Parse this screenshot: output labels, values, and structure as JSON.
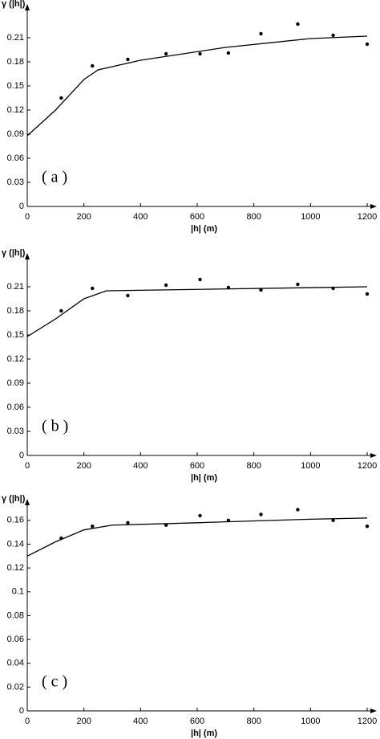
{
  "chart_data": [
    {
      "type": "scatter",
      "annotation": "( a )",
      "ylabel": "γ (|h|)",
      "xlabel": "|h| (m)",
      "xlim": [
        0,
        1200
      ],
      "xticks": [
        0,
        200,
        400,
        600,
        800,
        1000,
        1200
      ],
      "ylim": [
        0,
        0.24
      ],
      "yticks": [
        0,
        0.03,
        0.06,
        0.09,
        0.12,
        0.15,
        0.18,
        0.21
      ],
      "series": [
        {
          "type": "scatter",
          "color": "#000000",
          "x": [
            120,
            230,
            355,
            490,
            610,
            710,
            825,
            955,
            1080,
            1200
          ],
          "values": [
            0.135,
            0.175,
            0.183,
            0.19,
            0.19,
            0.191,
            0.215,
            0.227,
            0.213,
            0.202
          ]
        },
        {
          "type": "line",
          "color": "#000000",
          "x": [
            0,
            100,
            200,
            250,
            400,
            700,
            1000,
            1200
          ],
          "values": [
            0.088,
            0.12,
            0.158,
            0.17,
            0.182,
            0.198,
            0.209,
            0.212
          ]
        }
      ]
    },
    {
      "type": "scatter",
      "annotation": "( b )",
      "ylabel": "γ (|h|)",
      "xlabel": "|h| (m)",
      "xlim": [
        0,
        1200
      ],
      "xticks": [
        0,
        200,
        400,
        600,
        800,
        1000,
        1200
      ],
      "ylim": [
        0,
        0.24
      ],
      "yticks": [
        0,
        0.03,
        0.06,
        0.09,
        0.12,
        0.15,
        0.18,
        0.21
      ],
      "series": [
        {
          "type": "scatter",
          "color": "#000000",
          "x": [
            120,
            230,
            355,
            490,
            610,
            710,
            825,
            955,
            1080,
            1200
          ],
          "values": [
            0.18,
            0.208,
            0.199,
            0.212,
            0.219,
            0.209,
            0.206,
            0.213,
            0.208,
            0.201
          ]
        },
        {
          "type": "line",
          "color": "#000000",
          "x": [
            0,
            100,
            200,
            280,
            1200
          ],
          "values": [
            0.148,
            0.17,
            0.195,
            0.205,
            0.21
          ]
        }
      ]
    },
    {
      "type": "scatter",
      "annotation": "( c )",
      "ylabel": "γ (|h|)",
      "xlabel": "|h| (m)",
      "xlim": [
        0,
        1200
      ],
      "xticks": [
        0,
        200,
        400,
        600,
        800,
        1000,
        1200
      ],
      "ylim": [
        0,
        0.17
      ],
      "yticks": [
        0,
        0.02,
        0.04,
        0.06,
        0.08,
        0.1,
        0.12,
        0.14,
        0.16
      ],
      "series": [
        {
          "type": "scatter",
          "color": "#000000",
          "x": [
            120,
            230,
            355,
            490,
            610,
            710,
            825,
            955,
            1080,
            1200
          ],
          "values": [
            0.145,
            0.155,
            0.158,
            0.156,
            0.164,
            0.16,
            0.165,
            0.169,
            0.16,
            0.155
          ]
        },
        {
          "type": "line",
          "color": "#000000",
          "x": [
            0,
            100,
            200,
            300,
            600,
            1000,
            1200
          ],
          "values": [
            0.13,
            0.142,
            0.152,
            0.156,
            0.158,
            0.161,
            0.162
          ]
        }
      ]
    }
  ]
}
